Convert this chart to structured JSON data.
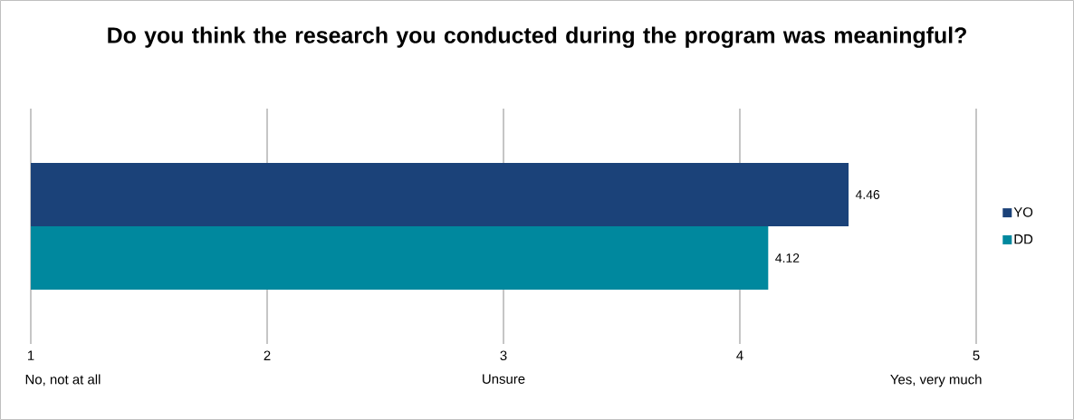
{
  "chart_data": {
    "type": "bar",
    "orientation": "horizontal",
    "title": "Do you think the research you conducted during the program was meaningful?",
    "categories": [
      null
    ],
    "series": [
      {
        "name": "YO",
        "color": "#1b4279",
        "values": [
          4.46
        ]
      },
      {
        "name": "DD",
        "color": "#00889e",
        "values": [
          4.12
        ]
      }
    ],
    "xlim": [
      1,
      5
    ],
    "xticks": [
      1,
      2,
      3,
      4,
      5
    ],
    "annotations": [
      "No, not at all",
      "Unsure",
      "Yes, very much"
    ],
    "data_labels": true,
    "grid": "x",
    "legend": "right"
  }
}
